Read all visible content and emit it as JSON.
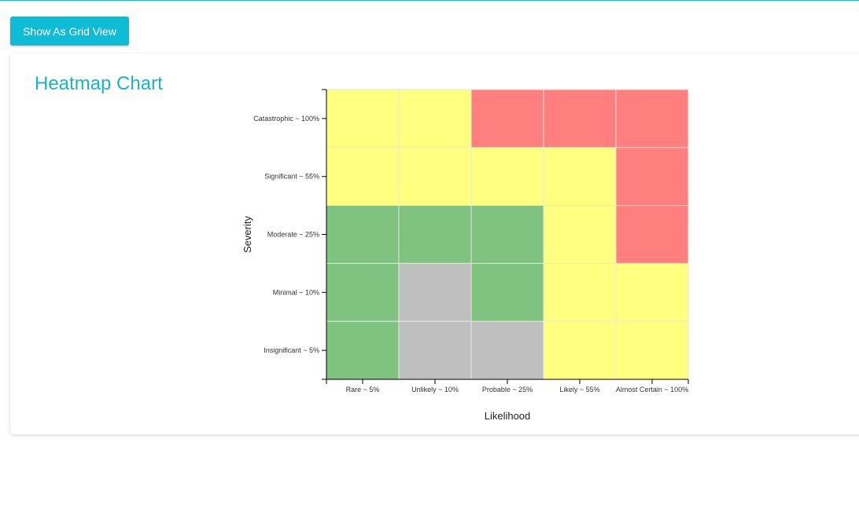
{
  "toolbar": {
    "grid_view_label": "Show As Grid View"
  },
  "card": {
    "title": "Heatmap Chart"
  },
  "chart_data": {
    "type": "heatmap",
    "title": "",
    "xlabel": "Likelihood",
    "ylabel": "Severity",
    "x_categories": [
      "Rare ~ 5%",
      "Unlikely ~ 10%",
      "Probable ~ 25%",
      "Likely ~ 55%",
      "Almost Certain ~ 100%"
    ],
    "y_categories": [
      "Catastrophic ~ 100%",
      "Significant ~ 55%",
      "Moderate ~ 25%",
      "Minimal ~ 10%",
      "Insignificant ~ 5%"
    ],
    "color_scale": {
      "yellow": "#ffff80",
      "red": "#ff7f7f",
      "green": "#80c280",
      "gray": "#bfbfbf"
    },
    "cells": [
      [
        "yellow",
        "yellow",
        "red",
        "red",
        "red"
      ],
      [
        "yellow",
        "yellow",
        "yellow",
        "yellow",
        "red"
      ],
      [
        "green",
        "green",
        "green",
        "yellow",
        "red"
      ],
      [
        "green",
        "gray",
        "green",
        "yellow",
        "yellow"
      ],
      [
        "green",
        "gray",
        "gray",
        "yellow",
        "yellow"
      ]
    ],
    "grid": true,
    "legend": "none"
  }
}
